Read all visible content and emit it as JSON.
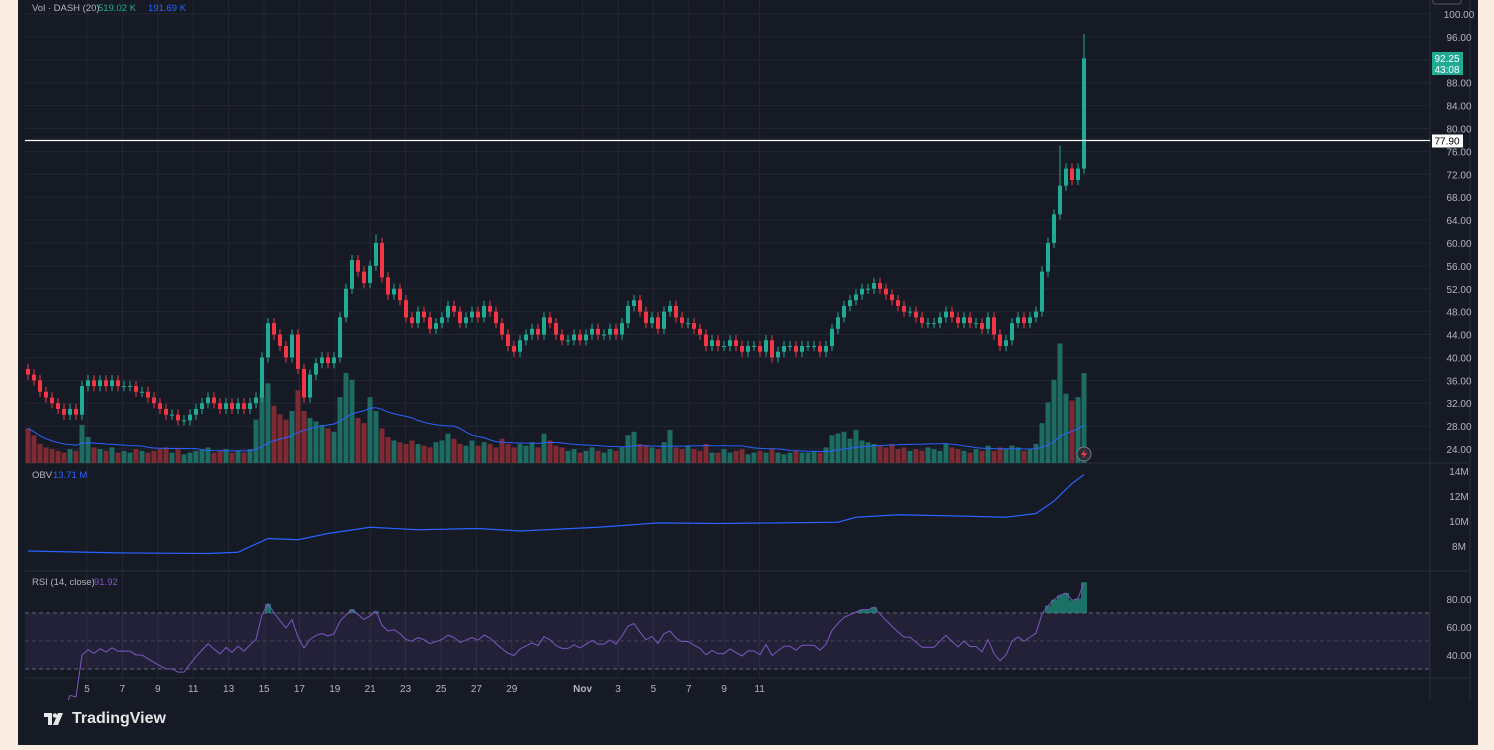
{
  "legend": {
    "volume_title": "Vol · DASH (20)",
    "volume_value": "519.02 K",
    "volume_ma_value": "191.69 K",
    "obv_title": "OBV",
    "obv_value": "13.71 M",
    "rsi_title": "RSI (14, close)",
    "rsi_value": "91.92"
  },
  "price_axis": {
    "ticks": [
      "100.00",
      "96.00",
      "88.00",
      "84.00",
      "80.00",
      "76.00",
      "72.00",
      "68.00",
      "64.00",
      "60.00",
      "56.00",
      "52.00",
      "48.00",
      "44.00",
      "40.00",
      "36.00",
      "32.00",
      "28.00",
      "24.00"
    ],
    "last_price": "92.25",
    "countdown": "43:08",
    "hline_price": "77.90"
  },
  "obv_axis": {
    "ticks": [
      "14M",
      "12M",
      "10M",
      "8M"
    ]
  },
  "rsi_axis": {
    "ticks": [
      "80.00",
      "60.00",
      "40.00"
    ]
  },
  "time_axis": {
    "ticks": [
      "5",
      "7",
      "9",
      "11",
      "13",
      "15",
      "17",
      "19",
      "21",
      "23",
      "25",
      "27",
      "29",
      "Nov",
      "3",
      "5",
      "7",
      "9",
      "11"
    ]
  },
  "brand": "TradingView",
  "colors": {
    "up": "#22ab94",
    "down": "#f23645",
    "obv": "#2962ff",
    "rsi": "#7e57c2",
    "hline": "#ffffff",
    "background": "#161a25"
  },
  "chart_data": [
    {
      "type": "candlestick",
      "symbol": "DASH",
      "ylim": [
        24,
        100
      ],
      "first_open": 38,
      "closes": [
        37,
        36,
        34,
        33,
        32,
        31,
        30,
        31,
        30,
        35,
        36,
        35,
        36,
        35,
        36,
        35,
        35,
        35,
        34,
        34,
        33,
        32,
        31,
        30,
        30,
        29,
        29,
        30,
        31,
        32,
        33,
        32,
        31,
        32,
        31,
        32,
        31,
        32,
        33,
        40,
        46,
        44,
        42,
        40,
        44,
        38,
        33,
        37,
        39,
        40,
        39,
        40,
        47,
        52,
        57,
        55,
        53,
        56,
        60,
        54,
        51,
        52,
        50,
        47,
        46,
        48,
        47,
        45,
        46,
        47,
        49,
        48,
        46,
        47,
        48,
        47,
        49,
        48,
        46,
        44,
        42,
        41,
        43,
        44,
        45,
        44,
        47,
        46,
        44,
        43,
        43,
        44,
        43,
        44,
        45,
        44,
        44,
        45,
        44,
        46,
        49,
        50,
        48,
        46,
        47,
        45,
        48,
        49,
        47,
        46,
        46,
        45,
        44,
        42,
        43,
        42,
        42,
        43,
        42,
        41,
        42,
        42,
        41,
        43,
        40,
        41,
        42,
        42,
        41,
        42,
        42,
        42,
        41,
        42,
        45,
        47,
        49,
        50,
        51,
        52,
        52,
        53,
        52,
        51,
        50,
        49,
        48,
        48,
        47,
        46,
        46,
        46,
        47,
        48,
        47,
        46,
        47,
        46,
        46,
        45,
        47,
        44,
        42,
        43,
        46,
        47,
        46,
        47,
        48,
        55,
        60,
        65,
        70,
        73,
        71,
        73,
        92.25
      ],
      "high_overrides": {
        "58": 61.5,
        "176": 96.5,
        "172": 77
      },
      "horizontal_line": 77.9
    },
    {
      "type": "bar",
      "name": "Vol · DASH (20)",
      "unit": "K",
      "values": [
        200,
        160,
        110,
        90,
        80,
        70,
        60,
        80,
        70,
        220,
        150,
        90,
        80,
        70,
        90,
        60,
        70,
        60,
        80,
        70,
        60,
        70,
        80,
        90,
        60,
        80,
        50,
        60,
        70,
        80,
        90,
        60,
        70,
        80,
        60,
        70,
        60,
        80,
        250,
        390,
        460,
        330,
        280,
        250,
        300,
        420,
        300,
        260,
        240,
        220,
        200,
        180,
        380,
        520,
        480,
        260,
        230,
        380,
        300,
        200,
        150,
        130,
        120,
        110,
        130,
        110,
        100,
        90,
        120,
        130,
        170,
        140,
        110,
        100,
        130,
        100,
        120,
        110,
        90,
        140,
        110,
        90,
        110,
        100,
        120,
        90,
        170,
        130,
        100,
        90,
        70,
        80,
        60,
        70,
        90,
        70,
        60,
        80,
        70,
        90,
        160,
        180,
        110,
        100,
        90,
        80,
        120,
        190,
        90,
        80,
        100,
        80,
        70,
        110,
        60,
        60,
        80,
        60,
        70,
        80,
        50,
        60,
        70,
        60,
        80,
        60,
        50,
        60,
        70,
        60,
        60,
        70,
        60,
        90,
        160,
        170,
        180,
        140,
        190,
        130,
        120,
        110,
        100,
        90,
        110,
        80,
        90,
        70,
        80,
        70,
        90,
        80,
        70,
        110,
        90,
        80,
        70,
        60,
        80,
        70,
        100,
        70,
        90,
        80,
        100,
        90,
        70,
        80,
        110,
        230,
        350,
        480,
        690,
        400,
        360,
        380,
        519
      ]
    },
    {
      "type": "line",
      "name": "OBV",
      "unit": "M",
      "ylim": [
        7,
        14.5
      ],
      "points": [
        [
          0,
          7.6
        ],
        [
          15,
          7.45
        ],
        [
          30,
          7.4
        ],
        [
          35,
          7.5
        ],
        [
          40,
          8.6
        ],
        [
          45,
          8.5
        ],
        [
          50,
          9.0
        ],
        [
          57,
          9.5
        ],
        [
          65,
          9.3
        ],
        [
          75,
          9.4
        ],
        [
          82,
          9.2
        ],
        [
          95,
          9.5
        ],
        [
          105,
          9.85
        ],
        [
          115,
          9.8
        ],
        [
          125,
          9.85
        ],
        [
          135,
          9.9
        ],
        [
          138,
          10.3
        ],
        [
          145,
          10.5
        ],
        [
          155,
          10.4
        ],
        [
          163,
          10.3
        ],
        [
          168,
          10.6
        ],
        [
          171,
          11.6
        ],
        [
          174,
          13.0
        ],
        [
          176,
          13.71
        ]
      ]
    },
    {
      "type": "line",
      "name": "RSI (14, close)",
      "ylim": [
        25,
        95
      ],
      "bands": [
        30,
        50,
        70
      ]
    }
  ]
}
